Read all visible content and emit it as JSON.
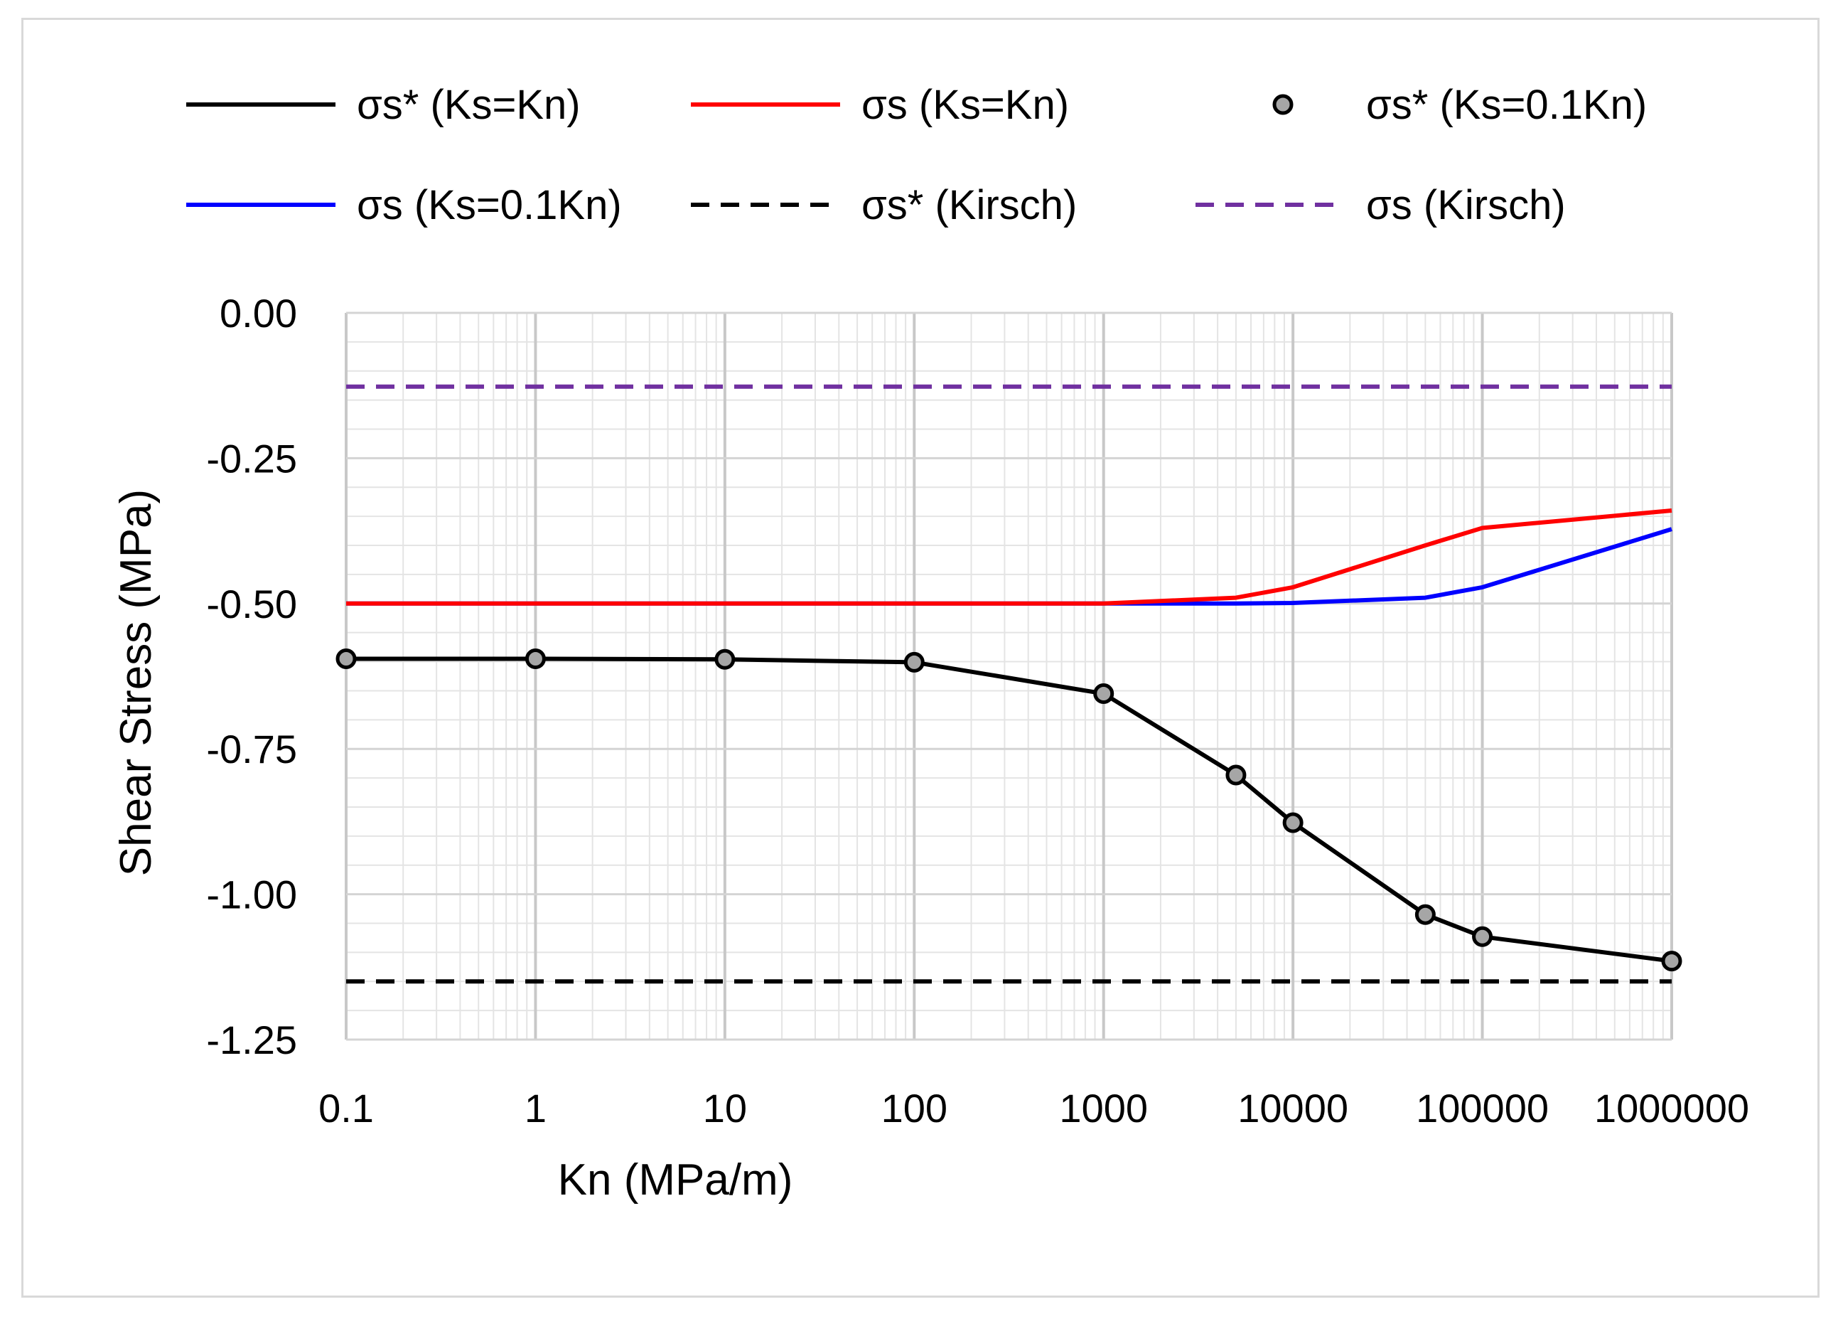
{
  "chart_data": {
    "type": "line",
    "xscale": "log",
    "x_axis": {
      "label": "Kn (MPa/m)",
      "ticks": [
        {
          "value": 0.1,
          "label": "0.1"
        },
        {
          "value": 1,
          "label": "1"
        },
        {
          "value": 10,
          "label": "10"
        },
        {
          "value": 100,
          "label": "100"
        },
        {
          "value": 1000,
          "label": "1000"
        },
        {
          "value": 10000,
          "label": "10000"
        },
        {
          "value": 100000,
          "label": "100000"
        },
        {
          "value": 1000000,
          "label": "1000000"
        }
      ],
      "range": [
        0.1,
        1000000
      ]
    },
    "y_axis": {
      "label": "Shear Stress (MPa)",
      "ticks": [
        {
          "value": 0,
          "label": "0.00"
        },
        {
          "value": -0.25,
          "label": "-0.25"
        },
        {
          "value": -0.5,
          "label": "-0.50"
        },
        {
          "value": -0.75,
          "label": "-0.75"
        },
        {
          "value": -1.0,
          "label": "-1.00"
        },
        {
          "value": -1.25,
          "label": "-1.25"
        }
      ],
      "range": [
        -1.25,
        0
      ],
      "minor_step": 0.05
    },
    "grid": true,
    "legend_position": "top",
    "series": [
      {
        "name": "σs* (Ks=Kn)",
        "color": "#000000",
        "style": "solid",
        "x": [
          0.1,
          1,
          10,
          100,
          1000,
          5000,
          10000,
          50000,
          100000,
          1000000
        ],
        "y": [
          -0.595,
          -0.595,
          -0.596,
          -0.601,
          -0.655,
          -0.795,
          -0.877,
          -1.035,
          -1.073,
          -1.115
        ]
      },
      {
        "name": "σs (Ks=Kn)",
        "color": "#ff0000",
        "style": "solid",
        "x": [
          0.1,
          1,
          10,
          100,
          1000,
          5000,
          10000,
          50000,
          100000,
          1000000
        ],
        "y": [
          -0.5,
          -0.5,
          -0.5,
          -0.5,
          -0.5,
          -0.49,
          -0.472,
          -0.4,
          -0.37,
          -0.34
        ]
      },
      {
        "name": "σs* (Ks=0.1Kn)",
        "color": "#000000",
        "marker_fill": "#a6a6a6",
        "style": "markers",
        "x": [
          0.1,
          1,
          10,
          100,
          1000,
          5000,
          10000,
          50000,
          100000,
          1000000
        ],
        "y": [
          -0.595,
          -0.595,
          -0.596,
          -0.601,
          -0.655,
          -0.795,
          -0.877,
          -1.035,
          -1.073,
          -1.115
        ]
      },
      {
        "name": "σs (Ks=0.1Kn)",
        "color": "#0000ff",
        "style": "solid",
        "x": [
          0.1,
          1,
          10,
          100,
          1000,
          5000,
          10000,
          50000,
          100000,
          1000000
        ],
        "y": [
          -0.5,
          -0.5,
          -0.5,
          -0.5,
          -0.5,
          -0.5,
          -0.499,
          -0.49,
          -0.472,
          -0.372
        ]
      },
      {
        "name": "σs* (Kirsch)",
        "color": "#000000",
        "style": "dashed",
        "x": [
          0.1,
          1000000
        ],
        "y": [
          -1.15,
          -1.15
        ]
      },
      {
        "name": "σs (Kirsch)",
        "color": "#7030a0",
        "style": "dashed",
        "x": [
          0.1,
          1000000
        ],
        "y": [
          -0.127,
          -0.127
        ]
      }
    ]
  }
}
